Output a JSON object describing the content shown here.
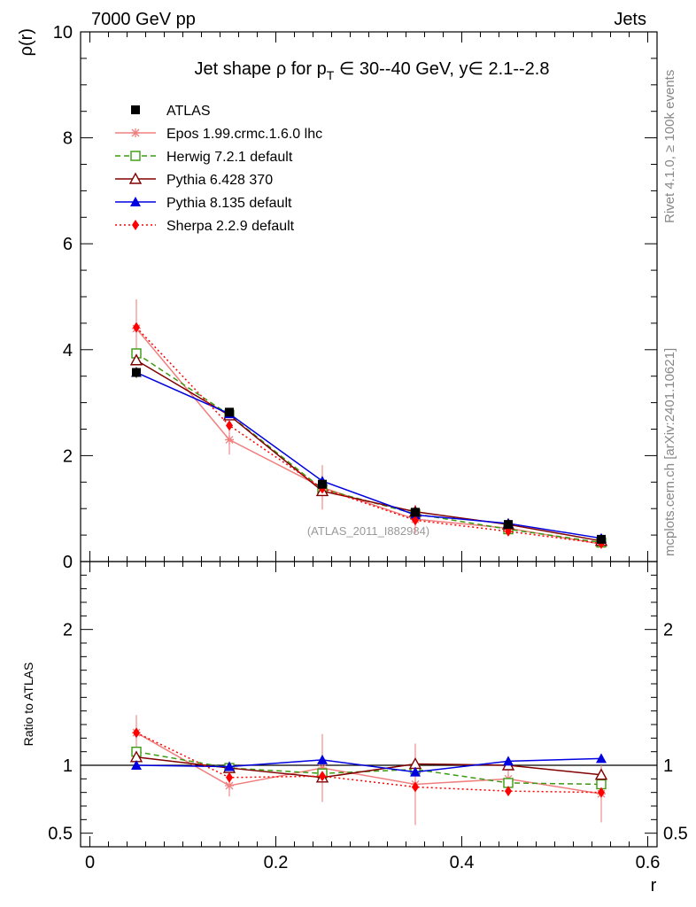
{
  "header": {
    "left": "7000 GeV pp",
    "right": "Jets"
  },
  "side_labels": {
    "rivet": "Rivet 4.1.0, ≥ 100k events",
    "mcplots": "mcplots.cern.ch [arXiv:2401.10621]"
  },
  "chart_data": {
    "type": "line",
    "title": "Jet shape ρ for p_T ∈ 30--40 GeV, y∈ 2.1--2.8",
    "title_parts": {
      "main": "Jet shape ρ for p",
      "sub": "T",
      "tail": " ∈ 30--40 GeV, y∈ 2.1--2.8"
    },
    "analysis_label": "(ATLAS_2011_I882984)",
    "xlabel": "r",
    "ylabel": "ρ(r)",
    "ratio_ylabel": "Ratio to ATLAS",
    "xlim": [
      -0.01,
      0.61
    ],
    "ylim": [
      0,
      10
    ],
    "ratio_ylim": [
      0.4,
      2.5
    ],
    "x_ticks": [
      0,
      0.2,
      0.4,
      0.6
    ],
    "x_tick_labels": [
      "0",
      "0.2",
      "0.4",
      "0.6"
    ],
    "y_ticks": [
      0,
      2,
      4,
      6,
      8,
      10
    ],
    "y_tick_labels": [
      "0",
      "2",
      "4",
      "6",
      "8",
      "10"
    ],
    "ratio_ticks": [
      0.5,
      1,
      2
    ],
    "ratio_tick_labels": [
      "0.5",
      "1",
      "2"
    ],
    "x": [
      0.05,
      0.15,
      0.25,
      0.35,
      0.45,
      0.55
    ],
    "data": {
      "name": "ATLAS",
      "values": [
        3.57,
        2.82,
        1.46,
        0.93,
        0.7,
        0.42
      ],
      "errors": [
        0.1,
        0.07,
        0.05,
        0.04,
        0.03,
        0.03
      ]
    },
    "series": [
      {
        "name": "Epos 1.99.crmc.1.6.0 lhc",
        "color": "#f08080",
        "dash": "",
        "marker": "star",
        "values": [
          4.4,
          2.3,
          1.4,
          0.8,
          0.63,
          0.33
        ],
        "errors": [
          0.55,
          0.28,
          0.42,
          0.27,
          0.05,
          0.09
        ]
      },
      {
        "name": "Herwig 7.2.1 default",
        "color": "#3a9a10",
        "dash": "6,4",
        "marker": "open-square",
        "values": [
          3.93,
          2.77,
          1.37,
          0.9,
          0.61,
          0.36
        ],
        "errors": [
          0.04,
          0.03,
          0.03,
          0.02,
          0.02,
          0.01
        ]
      },
      {
        "name": "Pythia 6.428 370",
        "color": "#800000",
        "dash": "",
        "marker": "open-triangle",
        "values": [
          3.8,
          2.76,
          1.33,
          0.94,
          0.7,
          0.39
        ],
        "errors": [
          0.04,
          0.03,
          0.03,
          0.02,
          0.02,
          0.01
        ]
      },
      {
        "name": "Pythia 8.135 default",
        "color": "#0000e0",
        "dash": "",
        "marker": "filled-triangle",
        "values": [
          3.57,
          2.79,
          1.52,
          0.88,
          0.72,
          0.44
        ],
        "errors": [
          0.04,
          0.03,
          0.03,
          0.02,
          0.02,
          0.01
        ]
      },
      {
        "name": "Sherpa 2.2.9 default",
        "color": "#ff0000",
        "dash": "2,3",
        "marker": "filled-diamond",
        "values": [
          4.42,
          2.57,
          1.38,
          0.78,
          0.57,
          0.34
        ],
        "errors": [
          0.08,
          0.05,
          0.03,
          0.02,
          0.02,
          0.01
        ]
      }
    ],
    "ratios": [
      {
        "name": "Epos 1.99.crmc.1.6.0 lhc",
        "values": [
          1.24,
          0.85,
          0.98,
          0.86,
          0.9,
          0.79
        ],
        "errors": [
          0.13,
          0.08,
          0.25,
          0.3,
          0.07,
          0.21
        ]
      },
      {
        "name": "Herwig 7.2.1 default",
        "values": [
          1.1,
          0.98,
          0.94,
          0.97,
          0.87,
          0.86
        ],
        "errors": [
          0.02,
          0.02,
          0.02,
          0.02,
          0.02,
          0.02
        ]
      },
      {
        "name": "Pythia 6.428 370",
        "values": [
          1.06,
          0.98,
          0.91,
          1.01,
          1.0,
          0.93
        ],
        "errors": [
          0.02,
          0.02,
          0.02,
          0.02,
          0.02,
          0.03
        ]
      },
      {
        "name": "Pythia 8.135 default",
        "values": [
          1.0,
          0.99,
          1.04,
          0.95,
          1.03,
          1.05
        ],
        "errors": [
          0.02,
          0.02,
          0.03,
          0.03,
          0.03,
          0.03
        ]
      },
      {
        "name": "Sherpa 2.2.9 default",
        "values": [
          1.24,
          0.91,
          0.92,
          0.84,
          0.81,
          0.8
        ],
        "errors": [
          0.03,
          0.02,
          0.02,
          0.03,
          0.02,
          0.02
        ]
      }
    ]
  }
}
